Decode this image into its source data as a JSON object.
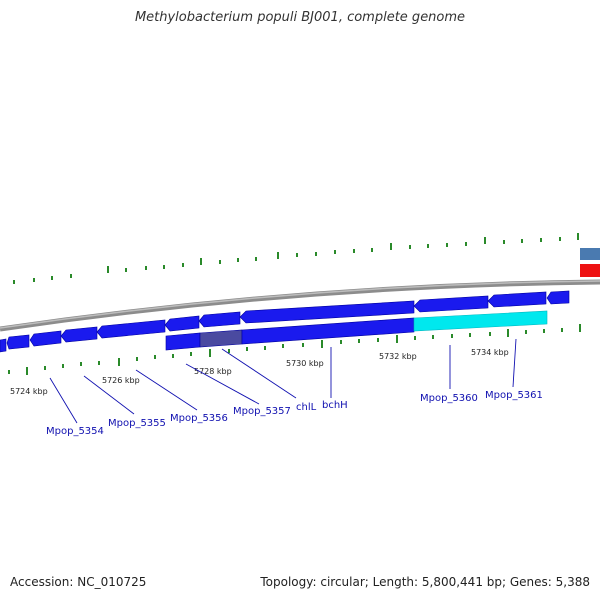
{
  "title": "Methylobacterium populi BJ001, complete genome",
  "footer": {
    "accession": "Accession: NC_010725",
    "summary": "Topology: circular; Length: 5,800,441 bp; Genes: 5,388"
  },
  "scale": {
    "ticks": [
      "5724 kbp",
      "5726 kbp",
      "5728 kbp",
      "5730 kbp",
      "5732 kbp",
      "5734 kbp"
    ]
  },
  "genes": {
    "labels": [
      "Mpop_5354",
      "Mpop_5355",
      "Mpop_5356",
      "Mpop_5357",
      "chlL",
      "bchH",
      "Mpop_5360",
      "Mpop_5361"
    ]
  },
  "colors": {
    "gene": "#1a1aee",
    "gene_dark": "#0000a0",
    "highlight": "#00e8ee",
    "selected": "#4a4aa0",
    "backbone": "#8c8c8c",
    "tick": "#2a8a2a",
    "label": "#1010b0",
    "feature_red": "#ee1111",
    "feature_steel": "#4a7ab0"
  }
}
